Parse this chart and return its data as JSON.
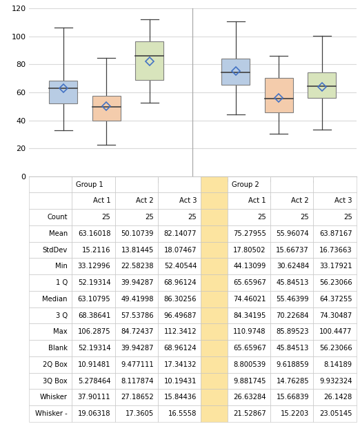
{
  "groups": [
    "Group 1",
    "Group 2"
  ],
  "acts": [
    "Act 1",
    "Act 2",
    "Act 3"
  ],
  "box_data": {
    "Group 1": {
      "Act 1": {
        "min": 33.12996,
        "q1": 52.19314,
        "median": 63.10795,
        "q3": 68.38641,
        "max": 106.2875,
        "mean": 63.16018
      },
      "Act 2": {
        "min": 22.58238,
        "q1": 39.94287,
        "median": 49.41998,
        "q3": 57.53786,
        "max": 84.72437,
        "mean": 50.10739
      },
      "Act 3": {
        "min": 52.40544,
        "q1": 68.96124,
        "median": 86.30256,
        "q3": 96.49687,
        "max": 112.3412,
        "mean": 82.14077
      }
    },
    "Group 2": {
      "Act 1": {
        "min": 44.13099,
        "q1": 65.65967,
        "median": 74.46021,
        "q3": 84.34195,
        "max": 110.9748,
        "mean": 75.27955
      },
      "Act 2": {
        "min": 30.62484,
        "q1": 45.84513,
        "median": 55.46399,
        "q3": 70.22684,
        "max": 85.89523,
        "mean": 55.96074
      },
      "Act 3": {
        "min": 33.17921,
        "q1": 56.23066,
        "median": 64.37255,
        "q3": 74.30487,
        "max": 100.4477,
        "mean": 63.87167
      }
    }
  },
  "box_colors": {
    "Act 1": "#b8cce4",
    "Act 2": "#f4ccac",
    "Act 3": "#d8e4bc"
  },
  "box_edge_color": "#7f7f7f",
  "whisker_color": "#404040",
  "median_color": "#404040",
  "mean_color": "#4472c4",
  "ylim": [
    0,
    120
  ],
  "yticks": [
    0,
    20,
    40,
    60,
    80,
    100,
    120
  ],
  "table_rows": [
    "Count",
    "Mean",
    "StdDev",
    "Min",
    "1 Q",
    "Median",
    "3 Q",
    "Max",
    "Blank",
    "2Q Box",
    "3Q Box",
    "Whisker",
    "Whisker -"
  ],
  "table_values": {
    "Group 1": {
      "Act 1": [
        "25",
        "63.16018",
        "15.2116",
        "33.12996",
        "52.19314",
        "63.10795",
        "68.38641",
        "106.2875",
        "52.19314",
        "10.91481",
        "5.278464",
        "37.90111",
        "19.06318"
      ],
      "Act 2": [
        "25",
        "50.10739",
        "13.81445",
        "22.58238",
        "39.94287",
        "49.41998",
        "57.53786",
        "84.72437",
        "39.94287",
        "9.477111",
        "8.117874",
        "27.18652",
        "17.3605"
      ],
      "Act 3": [
        "25",
        "82.14077",
        "18.07467",
        "52.40544",
        "68.96124",
        "86.30256",
        "96.49687",
        "112.3412",
        "68.96124",
        "17.34132",
        "10.19431",
        "15.84436",
        "16.5558"
      ]
    },
    "Group 2": {
      "Act 1": [
        "25",
        "75.27955",
        "17.80502",
        "44.13099",
        "65.65967",
        "74.46021",
        "84.34195",
        "110.9748",
        "65.65967",
        "8.800539",
        "9.881745",
        "26.63284",
        "21.52867"
      ],
      "Act 2": [
        "25",
        "55.96074",
        "15.66737",
        "30.62484",
        "45.84513",
        "55.46399",
        "70.22684",
        "85.89523",
        "45.84513",
        "9.618859",
        "14.76285",
        "15.66839",
        "15.2203"
      ],
      "Act 3": [
        "25",
        "63.87167",
        "16.73663",
        "33.17921",
        "56.23066",
        "64.37255",
        "74.30487",
        "100.4477",
        "56.23066",
        "8.14189",
        "9.932324",
        "26.1428",
        "23.05145"
      ]
    }
  },
  "highlight_col_color": "#fce4a0",
  "grid_color": "#d9d9d9",
  "bg_color": "#ffffff",
  "border_color": "#aaaaaa",
  "table_border_color": "#c0c0c0"
}
